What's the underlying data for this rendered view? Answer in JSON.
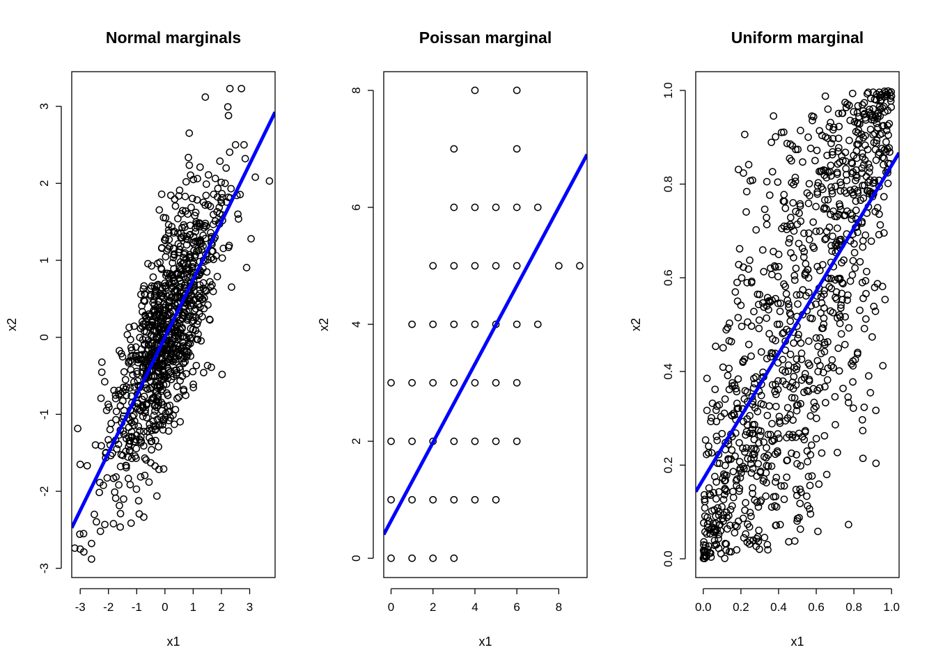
{
  "colors": {
    "line": "#0000ff",
    "point": "#000000",
    "frame": "#000000"
  },
  "chart_data": [
    {
      "type": "scatter",
      "title": "Normal marginals",
      "xlabel": "x1",
      "ylabel": "x2",
      "xlim": [
        -3.3,
        3.9
      ],
      "ylim": [
        -3.12,
        3.45
      ],
      "xticks": [
        -3,
        -2,
        -1,
        0,
        1,
        2,
        3
      ],
      "yticks": [
        -3,
        -2,
        -1,
        0,
        1,
        2,
        3
      ],
      "xtick_labels": [
        "-3",
        "-2",
        "-1",
        "0",
        "1",
        "2",
        "3"
      ],
      "ytick_labels": [
        "-3",
        "-2",
        "-1",
        "0",
        "1",
        "2",
        "3"
      ],
      "n_points": 1000,
      "correlation": 0.75,
      "fit_line": {
        "intercept": 0.0,
        "slope": 0.75
      },
      "notable_points": [
        [
          -3.0,
          -2.75
        ],
        [
          -2.6,
          -2.88
        ],
        [
          -2.5,
          -2.3
        ],
        [
          -3.0,
          -1.65
        ],
        [
          2.3,
          3.23
        ],
        [
          1.43,
          3.12
        ],
        [
          2.25,
          2.88
        ],
        [
          3.7,
          2.03
        ],
        [
          3.2,
          2.08
        ],
        [
          3.05,
          1.28
        ],
        [
          2.5,
          2.5
        ],
        [
          2.8,
          2.5
        ]
      ],
      "grid": false,
      "legend": "none"
    },
    {
      "type": "scatter",
      "title": "Poissan marginal",
      "xlabel": "x1",
      "ylabel": "x2",
      "xlim": [
        -0.35,
        9.35
      ],
      "ylim": [
        -0.33,
        8.32
      ],
      "xticks": [
        0,
        2,
        4,
        6,
        8
      ],
      "yticks": [
        0,
        2,
        4,
        6,
        8
      ],
      "xtick_labels": [
        "0",
        "2",
        "4",
        "6",
        "8"
      ],
      "ytick_labels": [
        "0",
        "2",
        "4",
        "6",
        "8"
      ],
      "points": [
        [
          0,
          0
        ],
        [
          1,
          0
        ],
        [
          2,
          0
        ],
        [
          3,
          0
        ],
        [
          0,
          1
        ],
        [
          1,
          1
        ],
        [
          2,
          1
        ],
        [
          3,
          1
        ],
        [
          4,
          1
        ],
        [
          5,
          1
        ],
        [
          0,
          2
        ],
        [
          1,
          2
        ],
        [
          2,
          2
        ],
        [
          3,
          2
        ],
        [
          4,
          2
        ],
        [
          5,
          2
        ],
        [
          6,
          2
        ],
        [
          0,
          3
        ],
        [
          1,
          3
        ],
        [
          2,
          3
        ],
        [
          3,
          3
        ],
        [
          4,
          3
        ],
        [
          5,
          3
        ],
        [
          6,
          3
        ],
        [
          1,
          4
        ],
        [
          2,
          4
        ],
        [
          3,
          4
        ],
        [
          4,
          4
        ],
        [
          5,
          4
        ],
        [
          6,
          4
        ],
        [
          7,
          4
        ],
        [
          2,
          5
        ],
        [
          3,
          5
        ],
        [
          4,
          5
        ],
        [
          5,
          5
        ],
        [
          6,
          5
        ],
        [
          8,
          5
        ],
        [
          9,
          5
        ],
        [
          3,
          6
        ],
        [
          4,
          6
        ],
        [
          5,
          6
        ],
        [
          6,
          6
        ],
        [
          7,
          6
        ],
        [
          3,
          7
        ],
        [
          6,
          7
        ],
        [
          4,
          8
        ],
        [
          6,
          8
        ]
      ],
      "fit_line": {
        "intercept": 0.64,
        "slope": 0.67
      },
      "grid": false,
      "legend": "none"
    },
    {
      "type": "scatter",
      "title": "Uniform marginal",
      "xlabel": "x1",
      "ylabel": "x2",
      "xlim": [
        -0.04,
        1.04
      ],
      "ylim": [
        -0.04,
        1.04
      ],
      "xticks": [
        0.0,
        0.2,
        0.4,
        0.6,
        0.8,
        1.0
      ],
      "yticks": [
        0.0,
        0.2,
        0.4,
        0.6,
        0.8,
        1.0
      ],
      "xtick_labels": [
        "0.0",
        "0.2",
        "0.4",
        "0.6",
        "0.8",
        "1.0"
      ],
      "ytick_labels": [
        "0.0",
        "0.2",
        "0.4",
        "0.6",
        "0.8",
        "1.0"
      ],
      "n_points": 1000,
      "correlation": 0.73,
      "fit_line": {
        "intercept": 0.17,
        "slope": 0.67
      },
      "grid": false,
      "legend": "none"
    }
  ]
}
